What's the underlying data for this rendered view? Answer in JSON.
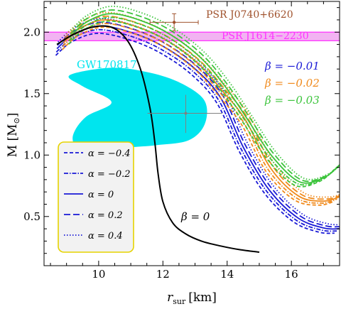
{
  "chart_data": {
    "type": "line",
    "xlabel": {
      "main": "r",
      "sub": "sur",
      "unit": "[km]"
    },
    "ylabel": {
      "main": "M [M",
      "sub": "⊙",
      "close": "]"
    },
    "xlim": [
      8.3,
      17.5
    ],
    "ylim": [
      0.1,
      2.25
    ],
    "xticks": [
      10,
      12,
      14,
      16
    ],
    "yticks": [
      0.5,
      1.0,
      1.5,
      2.0
    ],
    "xtick_labels": [
      "10",
      "12",
      "14",
      "16"
    ],
    "ytick_labels": [
      "0.5",
      "1.0",
      "1.5",
      "2.0"
    ],
    "grid": false,
    "beta_zero": {
      "label": "β = 0",
      "color": "#000000",
      "r": [
        8.7,
        9.2,
        9.8,
        10.4,
        10.9,
        11.3,
        11.6,
        11.75,
        11.85,
        12.0,
        12.3,
        12.7,
        13.2,
        13.8,
        14.4,
        15.0
      ],
      "M": [
        1.9,
        1.98,
        2.04,
        2.04,
        1.93,
        1.7,
        1.38,
        1.1,
        0.85,
        0.62,
        0.45,
        0.36,
        0.3,
        0.26,
        0.23,
        0.21
      ]
    },
    "family_shape": {
      "r": [
        8.7,
        9.2,
        10.0,
        11.0,
        12.0,
        13.0,
        13.8,
        14.5,
        15.3,
        16.2,
        17.0,
        17.5
      ],
      "f": [
        0.91,
        0.965,
        1.0,
        0.975,
        0.92,
        0.83,
        0.72,
        0.6,
        0.46,
        0.32,
        0.22,
        0.16
      ]
    },
    "alpha_series": [
      {
        "alpha": -0.4,
        "label": "α = −0.4",
        "dash": "5,3",
        "dM": -0.06,
        "dr": -0.12
      },
      {
        "alpha": -0.2,
        "label": "α = −0.2",
        "dash": "6,2,1.5,2",
        "dM": -0.03,
        "dr": -0.06
      },
      {
        "alpha": 0,
        "label": "α = 0",
        "dash": "",
        "dM": 0.0,
        "dr": 0.0
      },
      {
        "alpha": 0.2,
        "label": "α = 0.2",
        "dash": "9,4",
        "dM": 0.03,
        "dr": 0.06
      },
      {
        "alpha": 0.4,
        "label": "α = 0.4",
        "dash": "1.5,2.5",
        "dM": 0.06,
        "dr": 0.12
      }
    ],
    "beta_families": [
      {
        "label": "β = −0.01",
        "color": "#1a1ad6",
        "Mmax": 2.05,
        "r_at_max": 10.0,
        "r_tail": 17.5,
        "M_tail": 0.4,
        "r_tail_start": 13.2
      },
      {
        "label": "β = −0.02",
        "color": "#f08a1c",
        "Mmax": 2.1,
        "r_at_max": 10.2,
        "r_tail": 17.5,
        "M_tail": 0.66,
        "r_tail_start": 14.2
      },
      {
        "label": "β = −0.03",
        "color": "#3cc43c",
        "Mmax": 2.15,
        "r_at_max": 10.4,
        "r_tail": 17.5,
        "M_tail": 0.92,
        "r_tail_start": 15.0
      }
    ],
    "constraints": {
      "J1614": {
        "label": "PSR J1614−2230",
        "M_low": 1.93,
        "M_high": 2.0,
        "color": "#ff33ff",
        "fill": "#f2b3f2"
      },
      "J0740": {
        "label": "PSR J0740+6620",
        "r": 12.35,
        "r_err": [
          0.75,
          0.75
        ],
        "M": 2.08,
        "M_err": [
          0.07,
          0.07
        ],
        "color": "#a0522d"
      },
      "GW": {
        "label": "GW170817",
        "color": "#00e5ee"
      },
      "J0030": {
        "r": 12.71,
        "r_err": [
          1.19,
          1.14
        ],
        "M": 1.34,
        "M_err": [
          0.16,
          0.15
        ],
        "color": "#808080"
      }
    }
  }
}
